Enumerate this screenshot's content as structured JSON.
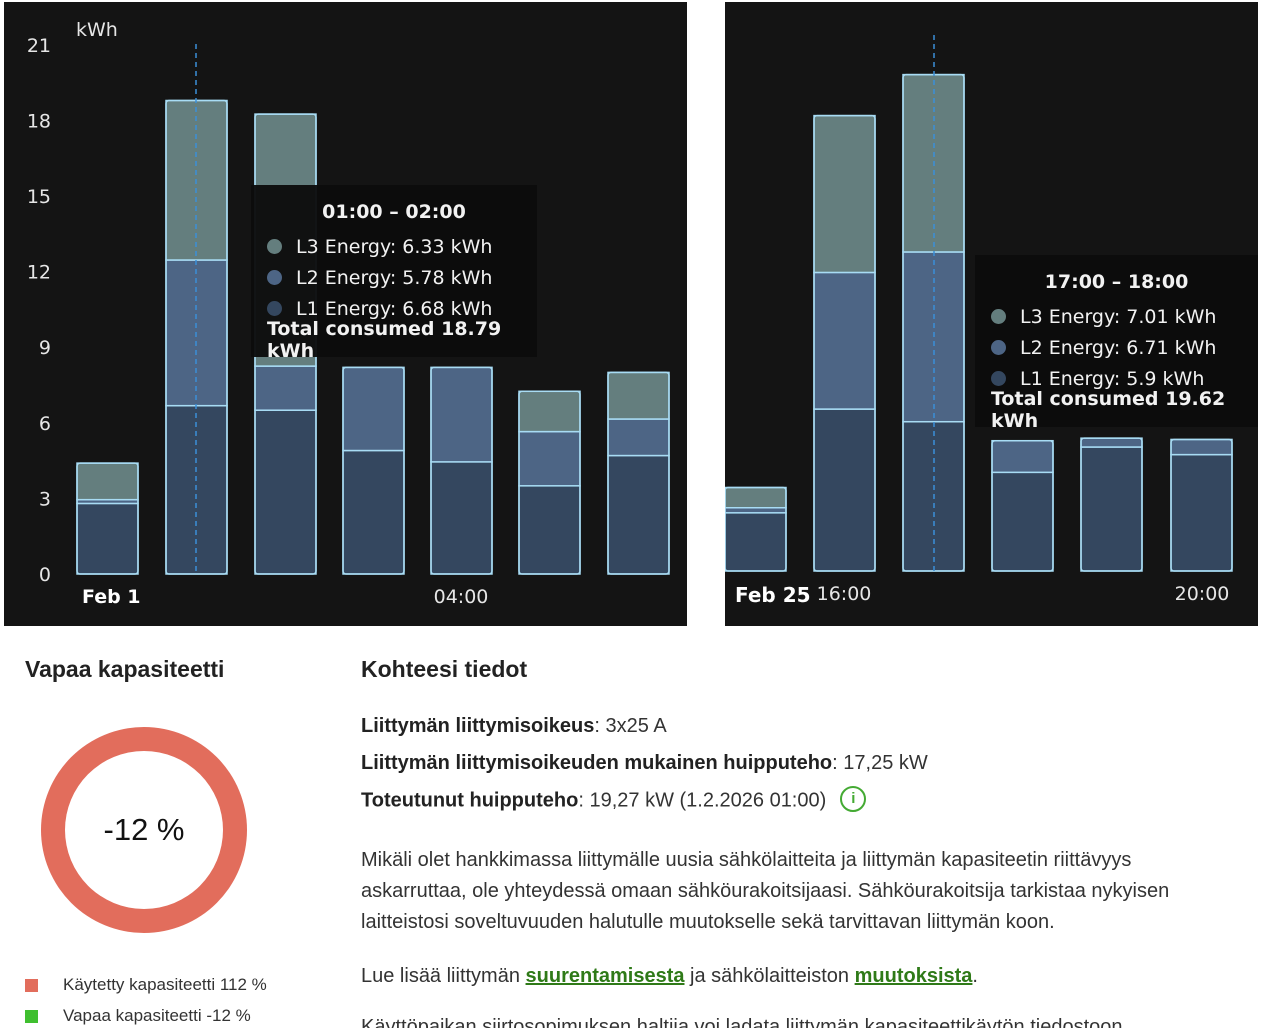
{
  "charts": [
    {
      "unit": "kWh",
      "y_ticks": [
        "21",
        "18",
        "15",
        "12",
        "9",
        "6",
        "3",
        "0"
      ],
      "x_labels": {
        "left": "Feb 1",
        "mid": "04:00"
      },
      "bars": [
        {
          "l1": 2.8,
          "l2": 0.15,
          "l3": 1.45
        },
        {
          "l1": 6.68,
          "l2": 5.78,
          "l3": 6.33
        },
        {
          "l1": 6.5,
          "l2": 1.75,
          "l3": 10.0
        },
        {
          "l1": 4.9,
          "l2": 3.3,
          "l3": 0
        },
        {
          "l1": 4.45,
          "l2": 3.75,
          "l3": 0
        },
        {
          "l1": 3.5,
          "l2": 2.15,
          "l3": 1.6
        },
        {
          "l1": 4.7,
          "l2": 1.45,
          "l3": 1.85
        }
      ],
      "tooltip": {
        "time": "01:00 – 02:00",
        "l3": "L3 Energy: 6.33 kWh",
        "l2": "L2 Energy: 5.78 kWh",
        "l1": "L1 Energy: 6.68 kWh",
        "total": "Total consumed 18.79 kWh"
      }
    },
    {
      "x_labels": {
        "left": "Feb 25",
        "first": "16:00",
        "last": "20:00"
      },
      "bars": [
        {
          "l1": 2.3,
          "l2": 0.2,
          "l3": 0.8
        },
        {
          "l1": 6.4,
          "l2": 5.4,
          "l3": 6.2
        },
        {
          "l1": 5.9,
          "l2": 6.71,
          "l3": 7.01
        },
        {
          "l1": 3.9,
          "l2": 1.25,
          "l3": 0
        },
        {
          "l1": 4.9,
          "l2": 0.35,
          "l3": 0
        },
        {
          "l1": 4.6,
          "l2": 0.6,
          "l3": 0
        }
      ],
      "tooltip": {
        "time": "17:00 – 18:00",
        "l3": "L3 Energy: 7.01 kWh",
        "l2": "L2 Energy: 6.71 kWh",
        "l1": "L1 Energy: 5.9 kWh",
        "total": "Total consumed 19.62 kWh"
      }
    }
  ],
  "colors": {
    "l1": "#34475f",
    "l2": "#4d6585",
    "l3": "#647e7e",
    "outline": "#a8dcf4",
    "hover_line": "#3b8fd8",
    "used": "#e26d5c",
    "free": "#3fbf2f",
    "link": "#2f7a18"
  },
  "capacity": {
    "title": "Vapaa kapasiteetti",
    "value": "-12 %",
    "legend_used": "Käytetty kapasiteetti 112 %",
    "legend_free": "Vapaa kapasiteetti -12 %"
  },
  "info": {
    "title": "Kohteesi tiedot",
    "line1_label": "Liittymän liittymisoikeus",
    "line1_value": ": 3x25 A",
    "line2_label": "Liittymän liittymisoikeuden mukainen huipputeho",
    "line2_value": ": 17,25 kW",
    "line3_label": "Toteutunut huipputeho",
    "line3_value": ": 19,27 kW (1.2.2026 01:00)",
    "info_icon": "i",
    "paragraph": "Mikäli olet hankkimassa liittymälle uusia sähkölaitteita ja liittymän kapasiteetin riittävyys askarruttaa, ole yhteydessä omaan sähköurakoitsijaasi. Sähköurakoitsija tarkistaa nykyisen laitteistosi soveltuvuuden halutulle muutokselle sekä tarvittavan liittymän koon.",
    "read_more_pre": "Lue lisää liittymän ",
    "link1": "suurentamisesta",
    "read_more_mid": " ja sähkölaitteiston ",
    "link2": "muutoksista",
    "read_more_post": ".",
    "cut_line": "Käyttöpaikan siirtosopimuksen haltija voi ladata liittymän kapasiteettikäytön tiedostoon"
  }
}
